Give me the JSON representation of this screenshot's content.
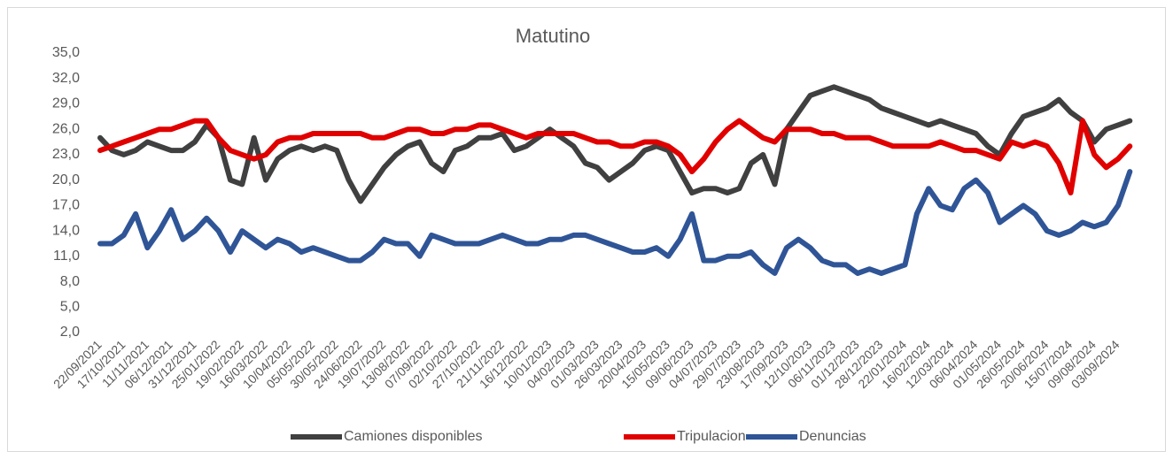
{
  "chart_data": {
    "type": "line",
    "title": "Matutino",
    "categories": [
      "22/09/2021",
      null,
      "17/10/2021",
      null,
      "11/11/2021",
      null,
      "06/12/2021",
      null,
      "31/12/2021",
      null,
      "25/01/2022",
      null,
      "19/02/2022",
      null,
      "16/03/2022",
      null,
      "10/04/2022",
      null,
      "05/05/2022",
      null,
      "30/05/2022",
      null,
      "24/06/2022",
      null,
      "19/07/2022",
      null,
      "13/08/2022",
      null,
      "07/09/2022",
      null,
      "02/10/2022",
      null,
      "27/10/2022",
      null,
      "21/11/2022",
      null,
      "16/12/2022",
      null,
      "10/01/2023",
      null,
      "04/02/2023",
      null,
      "01/03/2023",
      null,
      "26/03/2023",
      null,
      "20/04/2023",
      null,
      "15/05/2023",
      null,
      "09/06/2023",
      null,
      "04/07/2023",
      null,
      "29/07/2023",
      null,
      "23/08/2023",
      null,
      "17/09/2023",
      null,
      "12/10/2023",
      null,
      "06/11/2023",
      null,
      "01/12/2023",
      null,
      "28/12/2023",
      null,
      "22/01/2024",
      null,
      "16/02/2024",
      null,
      "12/03/2024",
      null,
      "06/04/2024",
      null,
      "01/05/2024",
      null,
      "26/05/2024",
      null,
      "20/06/2024",
      null,
      "15/07/2024",
      null,
      "09/08/2024",
      null,
      "03/09/2024",
      null
    ],
    "series": [
      {
        "name": "Camiones disponibles",
        "color": "#404040",
        "values": [
          25,
          23.5,
          23,
          23.5,
          24.5,
          24,
          23.5,
          23.5,
          24.5,
          26.5,
          25,
          20,
          19.5,
          25,
          20,
          22.5,
          23.5,
          24,
          23.5,
          24,
          23.5,
          20,
          17.5,
          19.5,
          21.5,
          23,
          24,
          24.5,
          22,
          21,
          23.5,
          24,
          25,
          25,
          25.5,
          23.5,
          24,
          25,
          26,
          25,
          24,
          22,
          21.5,
          20,
          21,
          22,
          23.5,
          24,
          23.5,
          21,
          18.5,
          19,
          19,
          18.5,
          19,
          22,
          23,
          19.5,
          26,
          28,
          30,
          30.5,
          31,
          30.5,
          30,
          29.5,
          28.5,
          28,
          27.5,
          27,
          26.5,
          27,
          26.5,
          26,
          25.5,
          24,
          23,
          25.5,
          27.5,
          28,
          28.5,
          29.5,
          28,
          27,
          24.5,
          26,
          26.5,
          27
        ]
      },
      {
        "name": "Tripulacion",
        "color": "#e00000",
        "values": [
          23.5,
          24,
          24.5,
          25,
          25.5,
          26,
          26,
          26.5,
          27,
          27,
          25,
          23.5,
          23,
          22.5,
          23,
          24.5,
          25,
          25,
          25.5,
          25.5,
          25.5,
          25.5,
          25.5,
          25,
          25,
          25.5,
          26,
          26,
          25.5,
          25.5,
          26,
          26,
          26.5,
          26.5,
          26,
          25.5,
          25,
          25.5,
          25.5,
          25.5,
          25.5,
          25,
          24.5,
          24.5,
          24,
          24,
          24.5,
          24.5,
          24,
          23,
          21,
          22.5,
          24.5,
          26,
          27,
          26,
          25,
          24.5,
          26,
          26,
          26,
          25.5,
          25.5,
          25,
          25,
          25,
          24.5,
          24,
          24,
          24,
          24,
          24.5,
          24,
          23.5,
          23.5,
          23,
          22.5,
          24.5,
          24,
          24.5,
          24,
          22,
          18.5,
          27,
          23,
          21.5,
          22.5,
          24
        ]
      },
      {
        "name": "Denuncias",
        "color": "#2f5597",
        "values": [
          12.5,
          12.5,
          13.5,
          16,
          12,
          14,
          16.5,
          13,
          14,
          15.5,
          14,
          11.5,
          14,
          13,
          12,
          13,
          12.5,
          11.5,
          12,
          11.5,
          11,
          10.5,
          10.5,
          11.5,
          13,
          12.5,
          12.5,
          11,
          13.5,
          13,
          12.5,
          12.5,
          12.5,
          13,
          13.5,
          13,
          12.5,
          12.5,
          13,
          13,
          13.5,
          13.5,
          13,
          12.5,
          12,
          11.5,
          11.5,
          12,
          11,
          13,
          16,
          10.5,
          10.5,
          11,
          11,
          11.5,
          10,
          9,
          12,
          13,
          12,
          10.5,
          10,
          10,
          9,
          9.5,
          9,
          9.5,
          10,
          16,
          19,
          17,
          16.5,
          19,
          20,
          18.5,
          15,
          16,
          17,
          16,
          14,
          13.5,
          14,
          15,
          14.5,
          15,
          17,
          21
        ]
      }
    ],
    "ylim": [
      2,
      35
    ],
    "yticks": [
      {
        "value": 2,
        "label": "2,0"
      },
      {
        "value": 5,
        "label": "5,0"
      },
      {
        "value": 8,
        "label": "8,0"
      },
      {
        "value": 11,
        "label": "11,0"
      },
      {
        "value": 14,
        "label": "14,0"
      },
      {
        "value": 17,
        "label": "17,0"
      },
      {
        "value": 20,
        "label": "20,0"
      },
      {
        "value": 23,
        "label": "23,0"
      },
      {
        "value": 26,
        "label": "26,0"
      },
      {
        "value": 29,
        "label": "29,0"
      },
      {
        "value": 32,
        "label": "32,0"
      },
      {
        "value": 35,
        "label": "35,0"
      }
    ],
    "legend": "bottom"
  }
}
